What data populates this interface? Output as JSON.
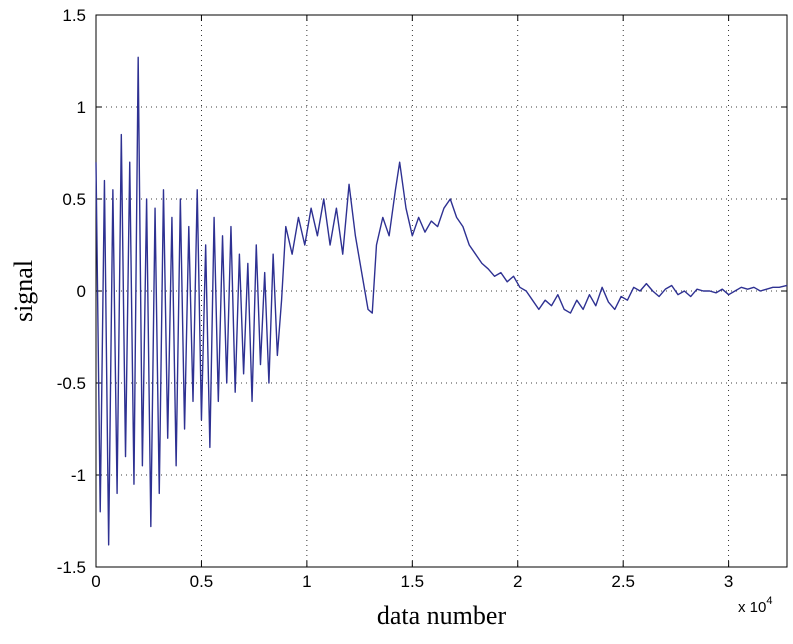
{
  "chart_data": {
    "type": "line",
    "title": "",
    "xlabel": "data number",
    "ylabel": "signal",
    "xlim": [
      0,
      32768
    ],
    "ylim": [
      -1.5,
      1.5
    ],
    "grid": true,
    "x_ticks": [
      0,
      5000,
      10000,
      15000,
      20000,
      25000,
      30000
    ],
    "x_tick_labels": [
      "0",
      "0.5",
      "1",
      "1.5",
      "2",
      "2.5",
      "3"
    ],
    "x_multiplier": "x 10",
    "x_multiplier_exponent": "4",
    "y_ticks": [
      -1.5,
      -1,
      -0.5,
      0,
      0.5,
      1,
      1.5
    ],
    "y_tick_labels": [
      "-1.5",
      "-1",
      "-0.5",
      "0",
      "0.5",
      "1",
      "1.5"
    ],
    "line_color": "#2e3192",
    "series": [
      {
        "x": [
          0,
          200,
          400,
          600,
          800,
          1000,
          1200,
          1400,
          1600,
          1800,
          2000,
          2200,
          2400,
          2600,
          2800,
          3000,
          3200,
          3400,
          3600,
          3800,
          4000,
          4200,
          4400,
          4600,
          4800,
          5000,
          5200,
          5400,
          5600,
          5800,
          6000,
          6200,
          6400,
          6600,
          6800,
          7000,
          7200,
          7400,
          7600,
          7800,
          8000,
          8200,
          8400,
          8600,
          8800,
          9000,
          9300,
          9600,
          9900,
          10200,
          10500,
          10800,
          11100,
          11400,
          11700,
          12000,
          12300,
          12600,
          12900,
          13100,
          13300,
          13600,
          13900,
          14200,
          14400,
          14700,
          15000,
          15300,
          15600,
          15900,
          16200,
          16500,
          16800,
          17100,
          17400,
          17700,
          18000,
          18300,
          18600,
          18900,
          19200,
          19500,
          19800,
          20100,
          20400,
          20700,
          21000,
          21300,
          21600,
          21900,
          22200,
          22500,
          22800,
          23100,
          23400,
          23700,
          24000,
          24300,
          24600,
          24900,
          25200,
          25500,
          25800,
          26100,
          26400,
          26700,
          27000,
          27300,
          27600,
          27900,
          28200,
          28500,
          28800,
          29100,
          29400,
          29700,
          30000,
          30300,
          30600,
          30900,
          31200,
          31500,
          31800,
          32100,
          32400,
          32768
        ],
        "y": [
          0.7,
          -1.2,
          0.6,
          -1.38,
          0.55,
          -1.1,
          0.85,
          -0.9,
          0.7,
          -1.05,
          1.27,
          -0.95,
          0.5,
          -1.28,
          0.45,
          -1.1,
          0.55,
          -0.8,
          0.4,
          -0.95,
          0.5,
          -0.75,
          0.35,
          -0.6,
          0.55,
          -0.7,
          0.25,
          -0.85,
          0.4,
          -0.6,
          0.3,
          -0.5,
          0.35,
          -0.55,
          0.2,
          -0.45,
          0.15,
          -0.6,
          0.25,
          -0.4,
          0.1,
          -0.5,
          0.2,
          -0.35,
          -0.05,
          0.35,
          0.2,
          0.4,
          0.25,
          0.45,
          0.3,
          0.5,
          0.25,
          0.45,
          0.2,
          0.58,
          0.3,
          0.1,
          -0.1,
          -0.12,
          0.25,
          0.4,
          0.3,
          0.55,
          0.7,
          0.45,
          0.3,
          0.4,
          0.32,
          0.38,
          0.35,
          0.45,
          0.5,
          0.4,
          0.35,
          0.25,
          0.2,
          0.15,
          0.12,
          0.08,
          0.1,
          0.05,
          0.08,
          0.02,
          0.0,
          -0.05,
          -0.1,
          -0.05,
          -0.08,
          -0.02,
          -0.1,
          -0.12,
          -0.05,
          -0.1,
          -0.02,
          -0.08,
          0.02,
          -0.06,
          -0.1,
          -0.03,
          -0.05,
          0.02,
          0.0,
          0.04,
          0.0,
          -0.03,
          0.01,
          0.03,
          -0.02,
          0.0,
          -0.03,
          0.01,
          0.0,
          0.0,
          -0.01,
          0.01,
          -0.02,
          0.0,
          0.02,
          0.01,
          0.02,
          0.0,
          0.01,
          0.02,
          0.02,
          0.03
        ]
      }
    ]
  }
}
